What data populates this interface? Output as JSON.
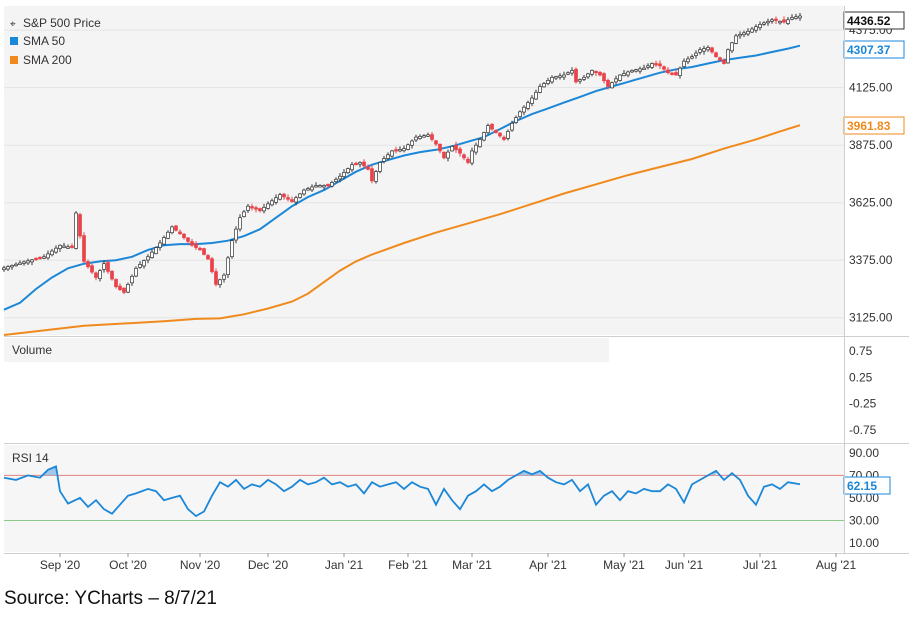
{
  "chart_data": {
    "type": "candlestick",
    "colors": {
      "up": "#ffffff",
      "up_border": "#333333",
      "down": "#e8434a",
      "sma50": "#1b87d8",
      "sma200": "#f08a1c",
      "rsi": "#1b87d8",
      "grid": "#e3e3e3",
      "panel_bg": "#f5f5f5"
    },
    "price_panel": {
      "series": [
        {
          "name": "S&P 500 Price",
          "current": "4436.52"
        },
        {
          "name": "SMA 50",
          "current": "4307.37"
        },
        {
          "name": "SMA 200",
          "current": "3961.83"
        }
      ],
      "y_ticks": [
        "4375.00",
        "4125.00",
        "3875.00",
        "3625.00",
        "3375.00",
        "3125.00"
      ],
      "ylim": [
        3050,
        4480
      ],
      "price_path": [
        [
          0,
          3342
        ],
        [
          5,
          3368
        ],
        [
          10,
          3390
        ],
        [
          14,
          3440
        ],
        [
          17,
          3430
        ],
        [
          18,
          3580
        ],
        [
          19,
          3480
        ],
        [
          20,
          3370
        ],
        [
          23,
          3300
        ],
        [
          25,
          3360
        ],
        [
          28,
          3260
        ],
        [
          30,
          3235
        ],
        [
          33,
          3340
        ],
        [
          36,
          3390
        ],
        [
          39,
          3450
        ],
        [
          42,
          3520
        ],
        [
          44,
          3490
        ],
        [
          47,
          3440
        ],
        [
          49,
          3420
        ],
        [
          51,
          3380
        ],
        [
          53,
          3270
        ],
        [
          55,
          3310
        ],
        [
          57,
          3460
        ],
        [
          59,
          3560
        ],
        [
          61,
          3610
        ],
        [
          64,
          3590
        ],
        [
          66,
          3620
        ],
        [
          69,
          3660
        ],
        [
          72,
          3630
        ],
        [
          75,
          3680
        ],
        [
          78,
          3700
        ],
        [
          81,
          3700
        ],
        [
          84,
          3740
        ],
        [
          87,
          3790
        ],
        [
          89,
          3800
        ],
        [
          91,
          3770
        ],
        [
          92,
          3720
        ],
        [
          94,
          3800
        ],
        [
          97,
          3850
        ],
        [
          100,
          3860
        ],
        [
          103,
          3910
        ],
        [
          106,
          3920
        ],
        [
          108,
          3880
        ],
        [
          110,
          3820
        ],
        [
          112,
          3870
        ],
        [
          114,
          3840
        ],
        [
          116,
          3800
        ],
        [
          117,
          3850
        ],
        [
          119,
          3900
        ],
        [
          121,
          3960
        ],
        [
          123,
          3930
        ],
        [
          125,
          3900
        ],
        [
          127,
          3970
        ],
        [
          129,
          4020
        ],
        [
          132,
          4080
        ],
        [
          134,
          4130
        ],
        [
          137,
          4170
        ],
        [
          140,
          4180
        ],
        [
          142,
          4200
        ],
        [
          143,
          4150
        ],
        [
          145,
          4170
        ],
        [
          147,
          4200
        ],
        [
          149,
          4180
        ],
        [
          151,
          4130
        ],
        [
          154,
          4180
        ],
        [
          157,
          4200
        ],
        [
          160,
          4210
        ],
        [
          162,
          4230
        ],
        [
          164,
          4220
        ],
        [
          166,
          4190
        ],
        [
          168,
          4180
        ],
        [
          170,
          4240
        ],
        [
          172,
          4260
        ],
        [
          174,
          4290
        ],
        [
          176,
          4300
        ],
        [
          178,
          4260
        ],
        [
          180,
          4230
        ],
        [
          181,
          4290
        ],
        [
          183,
          4350
        ],
        [
          186,
          4370
        ],
        [
          189,
          4400
        ],
        [
          192,
          4420
        ],
        [
          195,
          4410
        ],
        [
          197,
          4430
        ],
        [
          199,
          4436.52
        ]
      ],
      "sma50": [
        [
          0,
          3160
        ],
        [
          4,
          3190
        ],
        [
          8,
          3250
        ],
        [
          12,
          3300
        ],
        [
          16,
          3340
        ],
        [
          20,
          3360
        ],
        [
          24,
          3370
        ],
        [
          28,
          3375
        ],
        [
          32,
          3390
        ],
        [
          36,
          3420
        ],
        [
          40,
          3440
        ],
        [
          44,
          3445
        ],
        [
          48,
          3445
        ],
        [
          52,
          3450
        ],
        [
          56,
          3460
        ],
        [
          60,
          3480
        ],
        [
          64,
          3510
        ],
        [
          68,
          3560
        ],
        [
          72,
          3610
        ],
        [
          76,
          3650
        ],
        [
          80,
          3680
        ],
        [
          84,
          3720
        ],
        [
          88,
          3760
        ],
        [
          92,
          3790
        ],
        [
          96,
          3810
        ],
        [
          100,
          3830
        ],
        [
          104,
          3845
        ],
        [
          108,
          3855
        ],
        [
          112,
          3870
        ],
        [
          116,
          3890
        ],
        [
          120,
          3910
        ],
        [
          124,
          3945
        ],
        [
          128,
          3980
        ],
        [
          132,
          4010
        ],
        [
          136,
          4035
        ],
        [
          140,
          4060
        ],
        [
          144,
          4085
        ],
        [
          148,
          4110
        ],
        [
          152,
          4130
        ],
        [
          156,
          4150
        ],
        [
          160,
          4170
        ],
        [
          164,
          4190
        ],
        [
          168,
          4205
        ],
        [
          172,
          4215
        ],
        [
          176,
          4230
        ],
        [
          180,
          4245
        ],
        [
          184,
          4255
        ],
        [
          188,
          4265
        ],
        [
          192,
          4280
        ],
        [
          196,
          4295
        ],
        [
          199,
          4307.37
        ]
      ],
      "sma200": [
        [
          0,
          3050
        ],
        [
          10,
          3070
        ],
        [
          20,
          3090
        ],
        [
          30,
          3100
        ],
        [
          40,
          3110
        ],
        [
          48,
          3120
        ],
        [
          54,
          3122
        ],
        [
          60,
          3140
        ],
        [
          66,
          3165
        ],
        [
          72,
          3195
        ],
        [
          76,
          3230
        ],
        [
          80,
          3280
        ],
        [
          84,
          3330
        ],
        [
          88,
          3370
        ],
        [
          92,
          3400
        ],
        [
          100,
          3450
        ],
        [
          108,
          3495
        ],
        [
          116,
          3535
        ],
        [
          124,
          3575
        ],
        [
          132,
          3620
        ],
        [
          140,
          3665
        ],
        [
          148,
          3705
        ],
        [
          156,
          3745
        ],
        [
          164,
          3780
        ],
        [
          172,
          3815
        ],
        [
          180,
          3860
        ],
        [
          188,
          3900
        ],
        [
          194,
          3935
        ],
        [
          199,
          3961.83
        ]
      ]
    },
    "volume_panel": {
      "title": "Volume",
      "y_ticks": [
        "0.75",
        "0.25",
        "-0.25",
        "-0.75"
      ],
      "ylim": [
        -1,
        1
      ]
    },
    "rsi_panel": {
      "title": "RSI 14",
      "current": "62.15",
      "y_ticks": [
        "90.00",
        "70.00",
        "50.00",
        "30.00",
        "10.00"
      ],
      "ylim": [
        2,
        97
      ],
      "overbought": 70,
      "oversold": 30,
      "values": [
        [
          0,
          68
        ],
        [
          3,
          66
        ],
        [
          6,
          70
        ],
        [
          9,
          68
        ],
        [
          11,
          75
        ],
        [
          13,
          78
        ],
        [
          14,
          56
        ],
        [
          16,
          45
        ],
        [
          19,
          50
        ],
        [
          21,
          42
        ],
        [
          23,
          48
        ],
        [
          25,
          40
        ],
        [
          27,
          36
        ],
        [
          29,
          44
        ],
        [
          31,
          52
        ],
        [
          33,
          54
        ],
        [
          36,
          58
        ],
        [
          38,
          56
        ],
        [
          40,
          48
        ],
        [
          42,
          50
        ],
        [
          44,
          52
        ],
        [
          46,
          40
        ],
        [
          48,
          34
        ],
        [
          50,
          38
        ],
        [
          52,
          52
        ],
        [
          54,
          64
        ],
        [
          56,
          60
        ],
        [
          58,
          66
        ],
        [
          60,
          58
        ],
        [
          62,
          62
        ],
        [
          64,
          60
        ],
        [
          66,
          66
        ],
        [
          68,
          62
        ],
        [
          70,
          56
        ],
        [
          72,
          60
        ],
        [
          74,
          66
        ],
        [
          76,
          62
        ],
        [
          78,
          64
        ],
        [
          80,
          68
        ],
        [
          82,
          62
        ],
        [
          84,
          64
        ],
        [
          86,
          60
        ],
        [
          88,
          62
        ],
        [
          90,
          54
        ],
        [
          92,
          64
        ],
        [
          94,
          60
        ],
        [
          96,
          62
        ],
        [
          98,
          64
        ],
        [
          100,
          58
        ],
        [
          102,
          64
        ],
        [
          104,
          60
        ],
        [
          106,
          58
        ],
        [
          108,
          44
        ],
        [
          110,
          58
        ],
        [
          112,
          48
        ],
        [
          114,
          40
        ],
        [
          116,
          52
        ],
        [
          118,
          56
        ],
        [
          120,
          62
        ],
        [
          122,
          56
        ],
        [
          124,
          60
        ],
        [
          126,
          66
        ],
        [
          128,
          70
        ],
        [
          130,
          74
        ],
        [
          132,
          71
        ],
        [
          134,
          74
        ],
        [
          136,
          68
        ],
        [
          138,
          64
        ],
        [
          140,
          62
        ],
        [
          142,
          66
        ],
        [
          144,
          56
        ],
        [
          146,
          62
        ],
        [
          148,
          44
        ],
        [
          150,
          52
        ],
        [
          152,
          56
        ],
        [
          154,
          48
        ],
        [
          156,
          56
        ],
        [
          158,
          54
        ],
        [
          160,
          58
        ],
        [
          162,
          56
        ],
        [
          164,
          56
        ],
        [
          166,
          62
        ],
        [
          168,
          58
        ],
        [
          170,
          46
        ],
        [
          172,
          62
        ],
        [
          174,
          66
        ],
        [
          176,
          70
        ],
        [
          178,
          74
        ],
        [
          180,
          66
        ],
        [
          182,
          72
        ],
        [
          184,
          66
        ],
        [
          186,
          52
        ],
        [
          188,
          44
        ],
        [
          190,
          60
        ],
        [
          192,
          62
        ],
        [
          194,
          58
        ],
        [
          196,
          64
        ],
        [
          199,
          62.15
        ]
      ]
    },
    "x_labels": [
      {
        "text": "Sep '20",
        "i": 14
      },
      {
        "text": "Oct '20",
        "i": 31
      },
      {
        "text": "Nov '20",
        "i": 49
      },
      {
        "text": "Dec '20",
        "i": 66
      },
      {
        "text": "Jan '21",
        "i": 85
      },
      {
        "text": "Feb '21",
        "i": 101
      },
      {
        "text": "Mar '21",
        "i": 117
      },
      {
        "text": "Apr '21",
        "i": 136
      },
      {
        "text": "May '21",
        "i": 155
      },
      {
        "text": "Jun '21",
        "i": 170
      },
      {
        "text": "Jul '21",
        "i": 189
      },
      {
        "text": "Aug '21",
        "i": 208
      }
    ]
  },
  "source": "Source: YCharts – 8/7/21"
}
